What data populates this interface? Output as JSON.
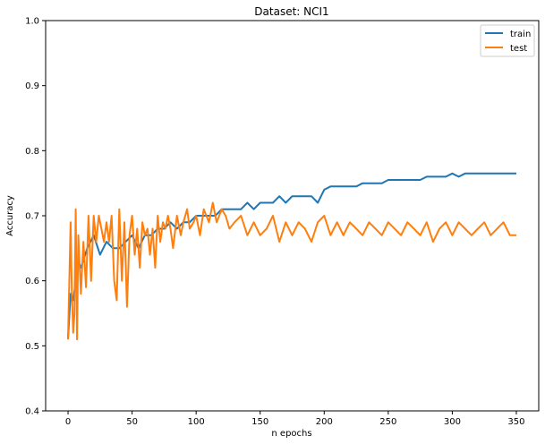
{
  "chart_data": {
    "type": "line",
    "title": "Dataset: NCI1",
    "xlabel": "n epochs",
    "ylabel": "Accuracy",
    "xlim": [
      -17.5,
      367.5
    ],
    "ylim": [
      0.4,
      1.0
    ],
    "xticks": [
      0,
      50,
      100,
      150,
      200,
      250,
      300,
      350
    ],
    "yticks": [
      0.4,
      0.5,
      0.6,
      0.7,
      0.8,
      0.9,
      1.0
    ],
    "xtick_labels": [
      "0",
      "50",
      "100",
      "150",
      "200",
      "250",
      "300",
      "350"
    ],
    "ytick_labels": [
      "0.4",
      "0.5",
      "0.6",
      "0.7",
      "0.8",
      "0.9",
      "1.0"
    ],
    "grid": false,
    "legend_position": "top-right",
    "series": [
      {
        "name": "train",
        "color": "#1f77b4",
        "x": [
          0,
          2,
          4,
          6,
          8,
          10,
          15,
          20,
          25,
          30,
          35,
          40,
          45,
          50,
          55,
          60,
          65,
          70,
          75,
          80,
          85,
          90,
          95,
          100,
          105,
          110,
          115,
          120,
          125,
          130,
          135,
          140,
          145,
          150,
          155,
          160,
          165,
          170,
          175,
          180,
          185,
          190,
          195,
          200,
          205,
          210,
          215,
          220,
          225,
          230,
          235,
          240,
          245,
          250,
          255,
          260,
          265,
          270,
          275,
          280,
          285,
          290,
          295,
          300,
          305,
          310,
          315,
          320,
          325,
          330,
          335,
          340,
          345,
          350
        ],
        "values": [
          0.51,
          0.58,
          0.57,
          0.6,
          0.63,
          0.62,
          0.65,
          0.67,
          0.64,
          0.66,
          0.65,
          0.65,
          0.66,
          0.67,
          0.65,
          0.67,
          0.67,
          0.68,
          0.68,
          0.69,
          0.68,
          0.69,
          0.69,
          0.7,
          0.7,
          0.7,
          0.7,
          0.71,
          0.71,
          0.71,
          0.71,
          0.72,
          0.71,
          0.72,
          0.72,
          0.72,
          0.73,
          0.72,
          0.73,
          0.73,
          0.73,
          0.73,
          0.72,
          0.74,
          0.745,
          0.745,
          0.745,
          0.745,
          0.745,
          0.75,
          0.75,
          0.75,
          0.75,
          0.755,
          0.755,
          0.755,
          0.755,
          0.755,
          0.755,
          0.76,
          0.76,
          0.76,
          0.76,
          0.765,
          0.76,
          0.765,
          0.765,
          0.765,
          0.765,
          0.765,
          0.765,
          0.765,
          0.765,
          0.765
        ]
      },
      {
        "name": "test",
        "color": "#ff7f0e",
        "x": [
          0,
          2,
          3,
          4,
          5,
          6,
          7,
          8,
          10,
          12,
          14,
          16,
          18,
          20,
          22,
          24,
          26,
          28,
          30,
          32,
          34,
          36,
          38,
          40,
          42,
          44,
          46,
          48,
          50,
          52,
          54,
          56,
          58,
          60,
          62,
          64,
          66,
          68,
          70,
          72,
          74,
          76,
          78,
          80,
          82,
          85,
          88,
          90,
          93,
          95,
          98,
          100,
          103,
          106,
          110,
          113,
          116,
          120,
          123,
          126,
          130,
          135,
          140,
          145,
          150,
          155,
          160,
          165,
          170,
          175,
          180,
          185,
          190,
          195,
          200,
          205,
          210,
          215,
          220,
          225,
          230,
          235,
          240,
          245,
          250,
          255,
          260,
          265,
          270,
          275,
          280,
          285,
          290,
          295,
          300,
          305,
          310,
          315,
          320,
          325,
          330,
          335,
          340,
          345,
          350
        ],
        "values": [
          0.51,
          0.69,
          0.58,
          0.52,
          0.55,
          0.71,
          0.51,
          0.67,
          0.58,
          0.66,
          0.59,
          0.7,
          0.6,
          0.7,
          0.66,
          0.7,
          0.68,
          0.66,
          0.69,
          0.66,
          0.7,
          0.6,
          0.57,
          0.71,
          0.6,
          0.69,
          0.56,
          0.67,
          0.7,
          0.64,
          0.68,
          0.62,
          0.69,
          0.67,
          0.68,
          0.64,
          0.68,
          0.62,
          0.7,
          0.66,
          0.69,
          0.68,
          0.7,
          0.68,
          0.65,
          0.7,
          0.67,
          0.69,
          0.71,
          0.68,
          0.69,
          0.7,
          0.67,
          0.71,
          0.69,
          0.72,
          0.69,
          0.71,
          0.7,
          0.68,
          0.69,
          0.7,
          0.67,
          0.69,
          0.67,
          0.68,
          0.7,
          0.66,
          0.69,
          0.67,
          0.69,
          0.68,
          0.66,
          0.69,
          0.7,
          0.67,
          0.69,
          0.67,
          0.69,
          0.68,
          0.67,
          0.69,
          0.68,
          0.67,
          0.69,
          0.68,
          0.67,
          0.69,
          0.68,
          0.67,
          0.69,
          0.66,
          0.68,
          0.69,
          0.67,
          0.69,
          0.68,
          0.67,
          0.68,
          0.69,
          0.67,
          0.68,
          0.69,
          0.67,
          0.67
        ]
      }
    ]
  }
}
